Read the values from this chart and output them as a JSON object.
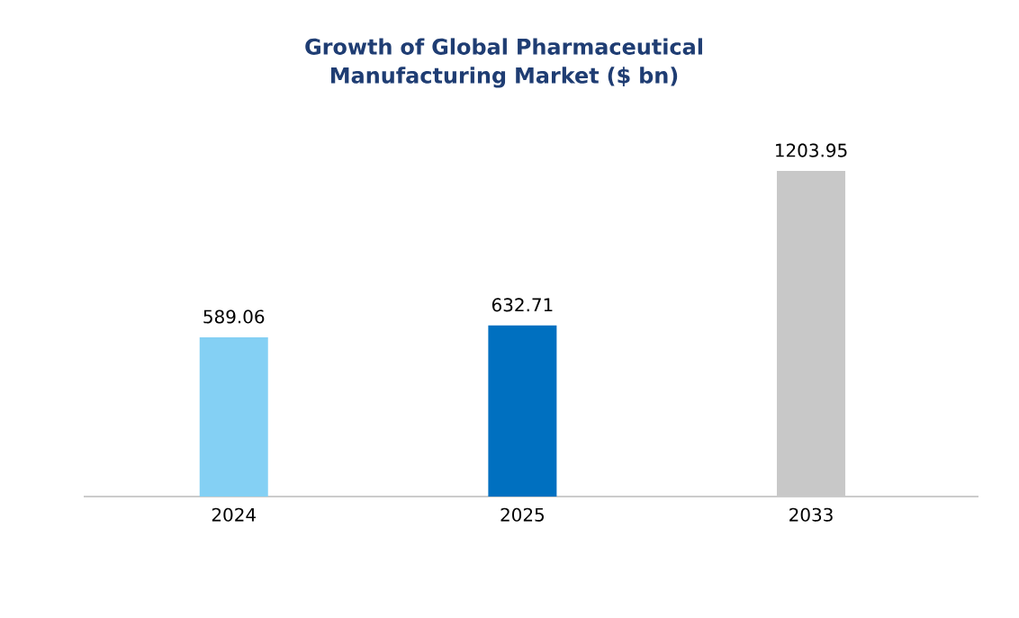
{
  "chart_data": {
    "type": "bar",
    "title": "Growth of Global Pharmaceutical Manufacturing Market ($ bn)",
    "categories": [
      "2024",
      "2025",
      "2033"
    ],
    "values": [
      589.06,
      632.71,
      1203.95
    ],
    "colors": [
      "#84d0f4",
      "#0070c0",
      "#c8c8c8"
    ],
    "data_labels": true
  }
}
